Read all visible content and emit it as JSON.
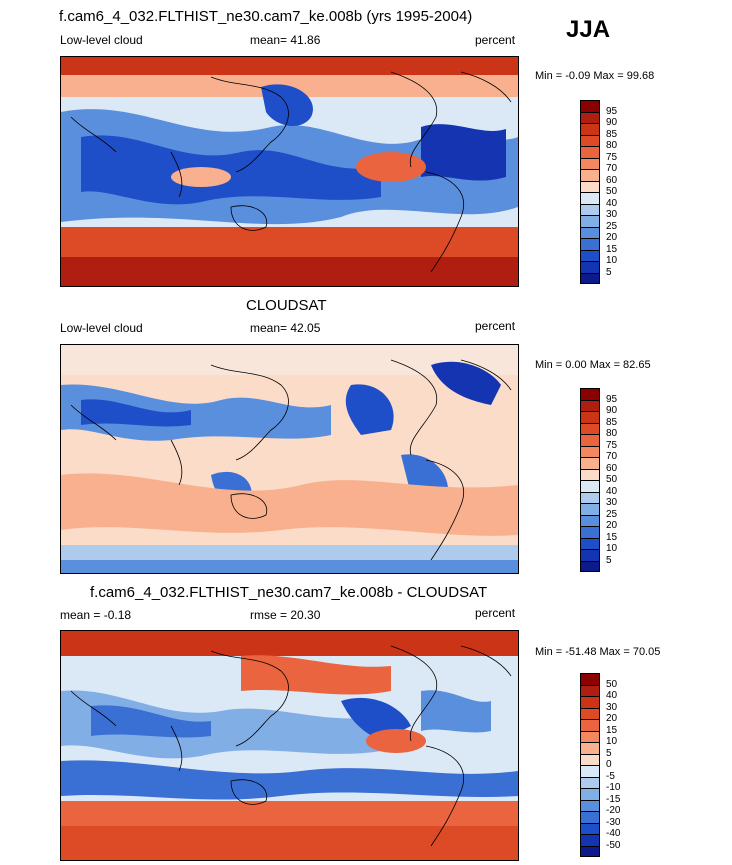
{
  "season": "JJA",
  "panels": [
    {
      "id": "model",
      "title": "f.cam6_4_032.FLTHIST_ne30.cam7_ke.008b (yrs 1995-2004)",
      "left_label": "Low-level cloud",
      "center_label": "mean=  41.86",
      "right_label": "percent",
      "minmax": "Min =  -0.09 Max =  99.68",
      "colorbar": {
        "labels": [
          "95",
          "90",
          "85",
          "80",
          "75",
          "70",
          "60",
          "50",
          "40",
          "30",
          "25",
          "20",
          "15",
          "10",
          "5"
        ],
        "colors": [
          "#8b0000",
          "#b01e12",
          "#cc3418",
          "#dd4a26",
          "#ea6440",
          "#f3875f",
          "#f8b08e",
          "#fbdcc8",
          "#dbe8f6",
          "#aecbee",
          "#82aee6",
          "#5a8fdd",
          "#3a6fd4",
          "#1e4ec8",
          "#1534b2",
          "#0d1a8c"
        ]
      }
    },
    {
      "id": "obs",
      "title": "CLOUDSAT",
      "left_label": "Low-level cloud",
      "center_label": "mean=  42.05",
      "right_label": "percent",
      "minmax": "Min =   0.00 Max =  82.65",
      "colorbar": {
        "labels": [
          "95",
          "90",
          "85",
          "80",
          "75",
          "70",
          "60",
          "50",
          "40",
          "30",
          "25",
          "20",
          "15",
          "10",
          "5"
        ],
        "colors": [
          "#8b0000",
          "#b01e12",
          "#cc3418",
          "#dd4a26",
          "#ea6440",
          "#f3875f",
          "#f8b08e",
          "#fbdcc8",
          "#dbe8f6",
          "#aecbee",
          "#82aee6",
          "#5a8fdd",
          "#3a6fd4",
          "#1e4ec8",
          "#1534b2",
          "#0d1a8c"
        ]
      }
    },
    {
      "id": "diff",
      "title": "f.cam6_4_032.FLTHIST_ne30.cam7_ke.008b - CLOUDSAT",
      "left_label": "mean =  -0.18",
      "center_label": "rmse =  20.30",
      "right_label": "percent",
      "minmax": "Min = -51.48 Max =  70.05",
      "colorbar": {
        "labels": [
          "50",
          "40",
          "30",
          "20",
          "15",
          "10",
          "5",
          "0",
          "-5",
          "-10",
          "-15",
          "-20",
          "-30",
          "-40",
          "-50"
        ],
        "colors": [
          "#8b0000",
          "#b01e12",
          "#cc3418",
          "#dd4a26",
          "#ea6440",
          "#f3875f",
          "#f8b08e",
          "#fbdcc8",
          "#dbe8f6",
          "#aecbee",
          "#82aee6",
          "#5a8fdd",
          "#3a6fd4",
          "#1e4ec8",
          "#1534b2",
          "#0d1a8c"
        ]
      }
    }
  ]
}
